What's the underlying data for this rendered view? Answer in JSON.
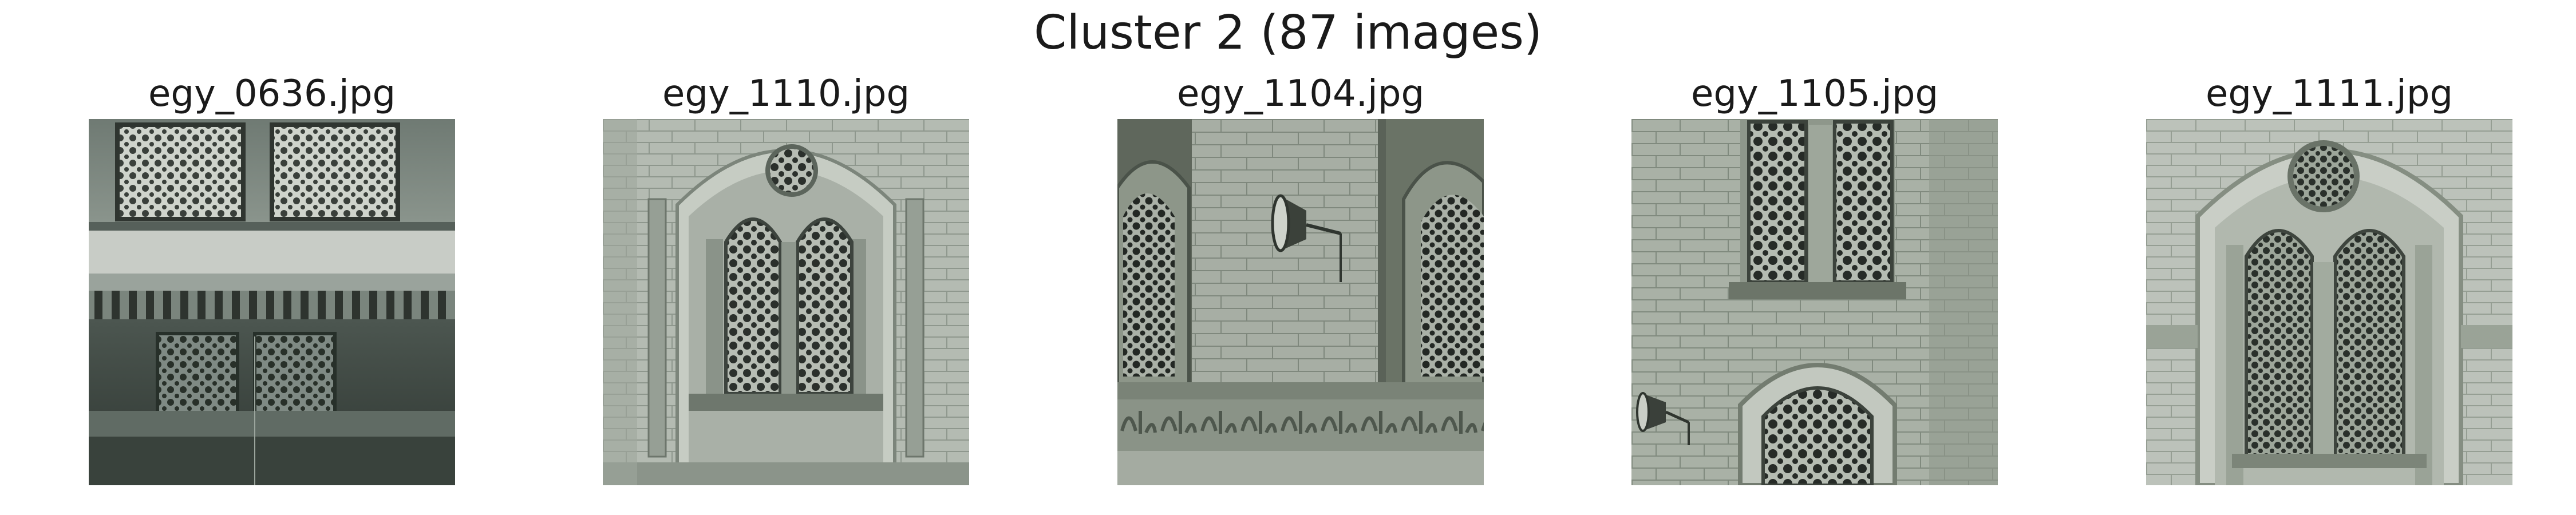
{
  "figure": {
    "title": "Cluster 2 (87 images)"
  },
  "panels": [
    {
      "filename": "egy_0636.jpg",
      "subject": "mashrabiya-screens-over-carved-cornice"
    },
    {
      "filename": "egy_1110.jpg",
      "subject": "arched-twin-window-with-oculus"
    },
    {
      "filename": "egy_1104.jpg",
      "subject": "wall-with-loudspeaker-and-inscription"
    },
    {
      "filename": "egy_1105.jpg",
      "subject": "stacked-lattice-windows-with-loudspeaker"
    },
    {
      "filename": "egy_1111.jpg",
      "subject": "arched-lattice-window-with-rosette"
    }
  ],
  "colors": {
    "stone_light": "#b9bfb6",
    "stone_mid": "#8f988d",
    "stone_dark": "#59625a",
    "lattice_dark": "#2b302c",
    "shadow": "#3b423d"
  }
}
